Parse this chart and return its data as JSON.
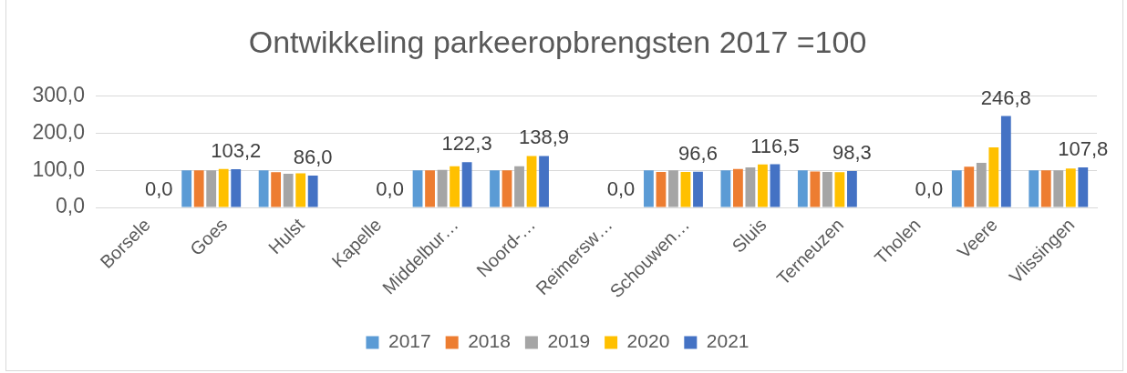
{
  "chart_data": {
    "type": "bar",
    "title": "Ontwikkeling parkeeropbrengsten 2017 =100",
    "categories": [
      "Borsele",
      "Goes",
      "Hulst",
      "Kapelle",
      "Middelbur…",
      "Noord-…",
      "Reimersw…",
      "Schouwen…",
      "Sluis",
      "Terneuzen",
      "Tholen",
      "Veere",
      "Vlissingen"
    ],
    "series": [
      {
        "name": "2017",
        "color": "#5b9bd5",
        "values": [
          0,
          100,
          100,
          0,
          100,
          100,
          0,
          100,
          100,
          100,
          0,
          100,
          100
        ]
      },
      {
        "name": "2018",
        "color": "#ed7d31",
        "values": [
          0,
          100,
          95,
          0,
          100,
          100,
          0,
          96,
          104,
          97,
          0,
          110,
          100
        ]
      },
      {
        "name": "2019",
        "color": "#a5a5a5",
        "values": [
          0,
          100,
          91,
          0,
          101,
          111,
          0,
          100,
          108,
          96,
          0,
          120,
          100
        ]
      },
      {
        "name": "2020",
        "color": "#ffc000",
        "values": [
          0,
          104,
          92,
          0,
          111,
          139,
          0,
          96,
          116,
          95,
          0,
          162,
          105
        ]
      },
      {
        "name": "2021",
        "color": "#4472c4",
        "values": [
          0,
          103.2,
          86.0,
          0,
          122.3,
          138.9,
          0,
          96.6,
          116.5,
          98.3,
          0,
          246.8,
          107.8
        ],
        "value_labels": [
          "0,0",
          "103,2",
          "86,0",
          "0,0",
          "122,3",
          "138,9",
          "0,0",
          "96,6",
          "116,5",
          "98,3",
          "0,0",
          "246,8",
          "107,8"
        ]
      }
    ],
    "ylim": [
      0,
      300
    ],
    "yticks": [
      {
        "value": 0,
        "label": "0,0"
      },
      {
        "value": 100,
        "label": "100,0"
      },
      {
        "value": 200,
        "label": "200,0"
      },
      {
        "value": 300,
        "label": "300,0"
      }
    ],
    "grid": "y",
    "legend": "bottom"
  }
}
